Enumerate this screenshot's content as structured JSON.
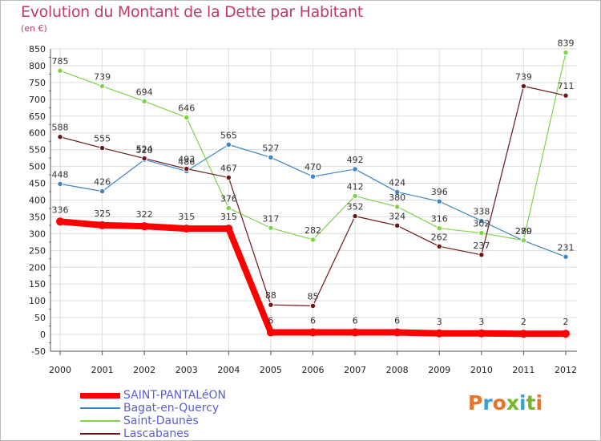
{
  "title": "Evolution du Montant de la Dette par Habitant",
  "subtitle": "(en €)",
  "logo": {
    "text": "Proxiti",
    "colors": [
      "#e8742a",
      "#3aa0d8",
      "#e8742a",
      "#77b52c",
      "#3aa0d8",
      "#77b52c",
      "#e8742a"
    ]
  },
  "chart_data": {
    "type": "line",
    "title": "Evolution du Montant de la Dette par Habitant",
    "ylabel": "(en €)",
    "xlabel": "",
    "x": [
      "2000",
      "2001",
      "2002",
      "2003",
      "2004",
      "2005",
      "2006",
      "2007",
      "2008",
      "2009",
      "2010",
      "2011",
      "2012"
    ],
    "ylim": [
      -50,
      850
    ],
    "yticks": [
      -50,
      0,
      50,
      100,
      150,
      200,
      250,
      300,
      350,
      400,
      450,
      500,
      550,
      600,
      650,
      700,
      750,
      800,
      850
    ],
    "grid": true,
    "legend_position": "bottom-left",
    "series": [
      {
        "name": "SAINT-PANTALéON",
        "color": "#ff0000",
        "values": [
          336,
          325,
          322,
          315,
          315,
          6,
          6,
          6,
          6,
          3,
          3,
          2,
          2
        ]
      },
      {
        "name": "Bagat-en-Quercy",
        "color": "#3d84c6",
        "values": [
          448,
          426,
          520,
          486,
          565,
          527,
          470,
          492,
          424,
          396,
          338,
          279,
          231
        ]
      },
      {
        "name": "Saint-Daunès",
        "color": "#7ed34a",
        "values": [
          785,
          739,
          694,
          646,
          376,
          317,
          282,
          412,
          380,
          316,
          302,
          280,
          839
        ]
      },
      {
        "name": "Lascabanes",
        "color": "#6b1717",
        "values": [
          588,
          555,
          524,
          493,
          467,
          88,
          85,
          352,
          324,
          262,
          237,
          739,
          711
        ]
      }
    ]
  }
}
